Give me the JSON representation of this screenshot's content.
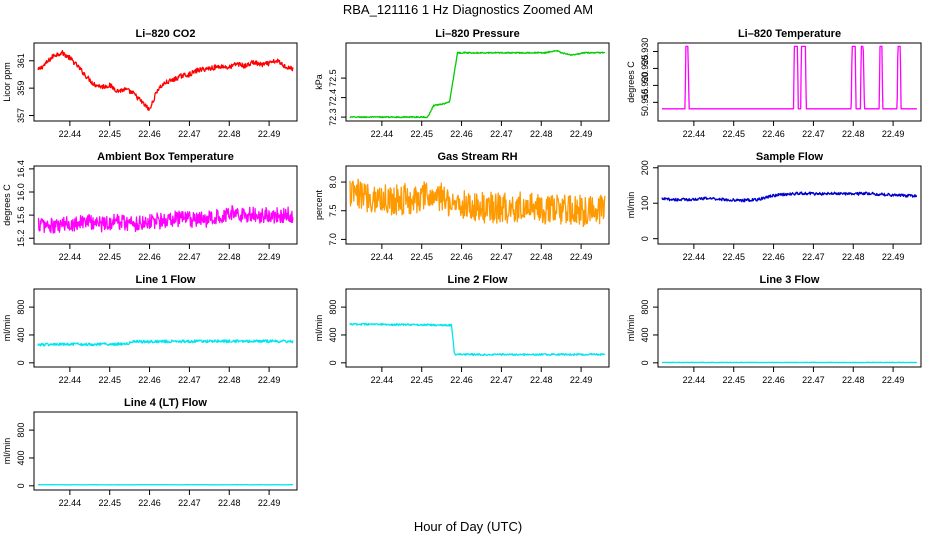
{
  "figure": {
    "title": "RBA_121116  1 Hz Diagnostics Zoomed AM",
    "xlabel": "Hour of Day (UTC)"
  },
  "chart_data": [
    {
      "type": "line",
      "title": "Li–820 CO2",
      "ylabel": "Licor ppm",
      "color": "#ff0000",
      "xlim": [
        22.431,
        22.497
      ],
      "ylim": [
        356.6,
        362.3
      ],
      "xticks": [
        "22.44",
        "22.45",
        "22.46",
        "22.47",
        "22.48",
        "22.49"
      ],
      "yticks": [
        "357",
        "359",
        "361"
      ],
      "x": [
        22.432,
        22.434,
        22.436,
        22.438,
        22.44,
        22.442,
        22.444,
        22.446,
        22.448,
        22.45,
        22.452,
        22.454,
        22.456,
        22.458,
        22.46,
        22.462,
        22.464,
        22.466,
        22.468,
        22.47,
        22.472,
        22.474,
        22.476,
        22.478,
        22.48,
        22.482,
        22.484,
        22.486,
        22.488,
        22.49,
        22.492,
        22.494,
        22.496
      ],
      "y": [
        360.3,
        360.8,
        361.4,
        361.6,
        361.2,
        360.6,
        359.9,
        359.3,
        359.1,
        359.2,
        358.8,
        358.9,
        358.6,
        358.0,
        357.4,
        358.9,
        359.4,
        359.6,
        359.9,
        360.0,
        360.3,
        360.4,
        360.5,
        360.6,
        360.5,
        360.8,
        360.6,
        360.9,
        360.7,
        360.8,
        361.0,
        360.6,
        360.4
      ],
      "noise": 0.35
    },
    {
      "type": "line",
      "title": "Li–820 Pressure",
      "ylabel": "kPa",
      "color": "#00cc00",
      "xlim": [
        22.431,
        22.497
      ],
      "ylim": [
        72.28,
        72.68
      ],
      "xticks": [
        "22.44",
        "22.45",
        "22.46",
        "22.47",
        "22.48",
        "22.49"
      ],
      "yticks": [
        "72.3",
        "72.4",
        "72.5"
      ],
      "x": [
        22.432,
        22.442,
        22.4515,
        22.453,
        22.456,
        22.457,
        22.4585,
        22.459,
        22.466,
        22.474,
        22.481,
        22.484,
        22.485,
        22.487,
        22.4885,
        22.491,
        22.496
      ],
      "y": [
        72.3,
        72.3,
        72.3,
        72.36,
        72.37,
        72.38,
        72.57,
        72.63,
        72.63,
        72.63,
        72.63,
        72.64,
        72.63,
        72.62,
        72.62,
        72.63,
        72.63
      ],
      "noise": 0.006
    },
    {
      "type": "line",
      "title": "Li–820 Temperature",
      "ylabel": "degrees C",
      "color": "#ff00ff",
      "xlim": [
        22.431,
        22.497
      ],
      "ylim": [
        50.9095,
        50.9325
      ],
      "xticks": [
        "22.44",
        "22.45",
        "22.46",
        "22.47",
        "22.48",
        "22.49"
      ],
      "yticks": [
        "50.915",
        "50.920",
        "50.925",
        "50.930"
      ],
      "x": [
        22.432,
        22.4378,
        22.438,
        22.4385,
        22.4388,
        22.465,
        22.4652,
        22.466,
        22.4662,
        22.4668,
        22.467,
        22.4675,
        22.468,
        22.4682,
        22.4688,
        22.4795,
        22.4797,
        22.4805,
        22.4807,
        22.4818,
        22.482,
        22.4825,
        22.4828,
        22.4865,
        22.4867,
        22.4872,
        22.4874,
        22.491,
        22.4912,
        22.4918,
        22.492,
        22.496
      ],
      "y": [
        50.9131,
        50.9131,
        50.9315,
        50.9315,
        50.9131,
        50.9131,
        50.9315,
        50.9315,
        50.9131,
        50.9131,
        50.9315,
        50.9315,
        50.9315,
        50.9131,
        50.9131,
        50.9131,
        50.9315,
        50.9315,
        50.9131,
        50.9131,
        50.9315,
        50.9315,
        50.9131,
        50.9131,
        50.9315,
        50.9315,
        50.9131,
        50.9131,
        50.9315,
        50.9315,
        50.9131,
        50.9131
      ],
      "noise": 0
    },
    {
      "type": "line",
      "title": "Ambient Box Temperature",
      "ylabel": "degrees C",
      "color": "#ff00ff",
      "xlim": [
        22.431,
        22.497
      ],
      "ylim": [
        15.1,
        16.45
      ],
      "xticks": [
        "22.44",
        "22.45",
        "22.46",
        "22.47",
        "22.48",
        "22.49"
      ],
      "yticks": [
        "15.2",
        "15.6",
        "16.0",
        "16.4"
      ],
      "x": [
        22.432,
        22.436,
        22.44,
        22.444,
        22.448,
        22.452,
        22.456,
        22.46,
        22.464,
        22.468,
        22.472,
        22.476,
        22.48,
        22.484,
        22.488,
        22.492,
        22.496
      ],
      "y": [
        15.45,
        15.4,
        15.45,
        15.5,
        15.45,
        15.5,
        15.45,
        15.5,
        15.5,
        15.55,
        15.5,
        15.55,
        15.65,
        15.6,
        15.6,
        15.6,
        15.6
      ],
      "noise": 0.28
    },
    {
      "type": "line",
      "title": "Gas Stream RH",
      "ylabel": "percent",
      "color": "#ff9900",
      "xlim": [
        22.431,
        22.497
      ],
      "ylim": [
        6.92,
        8.28
      ],
      "xticks": [
        "22.44",
        "22.45",
        "22.46",
        "22.47",
        "22.48",
        "22.49"
      ],
      "yticks": [
        "7.0",
        "7.5",
        "8.0"
      ],
      "x": [
        22.432,
        22.436,
        22.44,
        22.444,
        22.448,
        22.452,
        22.456,
        22.46,
        22.464,
        22.468,
        22.472,
        22.476,
        22.48,
        22.484,
        22.488,
        22.492,
        22.496
      ],
      "y": [
        7.8,
        7.75,
        7.7,
        7.7,
        7.7,
        7.75,
        7.7,
        7.6,
        7.55,
        7.55,
        7.55,
        7.6,
        7.55,
        7.5,
        7.5,
        7.5,
        7.55
      ],
      "noise": 0.55
    },
    {
      "type": "line",
      "title": "Sample Flow",
      "ylabel": "ml/min",
      "color": "#0000cc",
      "xlim": [
        22.431,
        22.497
      ],
      "ylim": [
        -15,
        205
      ],
      "xticks": [
        "22.44",
        "22.45",
        "22.46",
        "22.47",
        "22.48",
        "22.49"
      ],
      "yticks": [
        "0",
        "100",
        "200"
      ],
      "x": [
        22.432,
        22.436,
        22.44,
        22.444,
        22.448,
        22.452,
        22.456,
        22.46,
        22.464,
        22.468,
        22.472,
        22.476,
        22.48,
        22.484,
        22.488,
        22.492,
        22.496
      ],
      "y": [
        112,
        110,
        111,
        114,
        110,
        108,
        110,
        122,
        126,
        128,
        126,
        128,
        126,
        128,
        124,
        122,
        120
      ],
      "noise": 8
    },
    {
      "type": "line",
      "title": "Line 1 Flow",
      "ylabel": "ml/min",
      "color": "#00e5ee",
      "xlim": [
        22.431,
        22.497
      ],
      "ylim": [
        -60,
        1060
      ],
      "xticks": [
        "22.44",
        "22.45",
        "22.46",
        "22.47",
        "22.48",
        "22.49"
      ],
      "yticks": [
        "0",
        "400",
        "800"
      ],
      "x": [
        22.432,
        22.44,
        22.448,
        22.4545,
        22.456,
        22.464,
        22.472,
        22.48,
        22.488,
        22.496
      ],
      "y": [
        262,
        265,
        268,
        272,
        305,
        308,
        310,
        310,
        310,
        308
      ],
      "noise": 40
    },
    {
      "type": "line",
      "title": "Line 2 Flow",
      "ylabel": "ml/min",
      "color": "#00e5ee",
      "xlim": [
        22.431,
        22.497
      ],
      "ylim": [
        -60,
        1060
      ],
      "xticks": [
        "22.44",
        "22.45",
        "22.46",
        "22.47",
        "22.48",
        "22.49"
      ],
      "yticks": [
        "0",
        "400",
        "800"
      ],
      "x": [
        22.432,
        22.44,
        22.448,
        22.4575,
        22.4582,
        22.466,
        22.474,
        22.482,
        22.49,
        22.496
      ],
      "y": [
        555,
        550,
        548,
        540,
        120,
        120,
        120,
        120,
        120,
        120
      ],
      "noise": 25
    },
    {
      "type": "line",
      "title": "Line 3 Flow",
      "ylabel": "ml/min",
      "color": "#00e5ee",
      "xlim": [
        22.431,
        22.497
      ],
      "ylim": [
        -60,
        1060
      ],
      "xticks": [
        "22.44",
        "22.45",
        "22.46",
        "22.47",
        "22.48",
        "22.49"
      ],
      "yticks": [
        "0",
        "400",
        "800"
      ],
      "x": [
        22.432,
        22.496
      ],
      "y": [
        5,
        5
      ],
      "noise": 5
    },
    {
      "type": "line",
      "title": "Line 4 (LT) Flow",
      "ylabel": "ml/min",
      "color": "#00e5ee",
      "xlim": [
        22.431,
        22.497
      ],
      "ylim": [
        -60,
        1060
      ],
      "xticks": [
        "22.44",
        "22.45",
        "22.46",
        "22.47",
        "22.48",
        "22.49"
      ],
      "yticks": [
        "0",
        "400",
        "800"
      ],
      "x": [
        22.432,
        22.496
      ],
      "y": [
        15,
        15
      ],
      "noise": 5
    }
  ]
}
